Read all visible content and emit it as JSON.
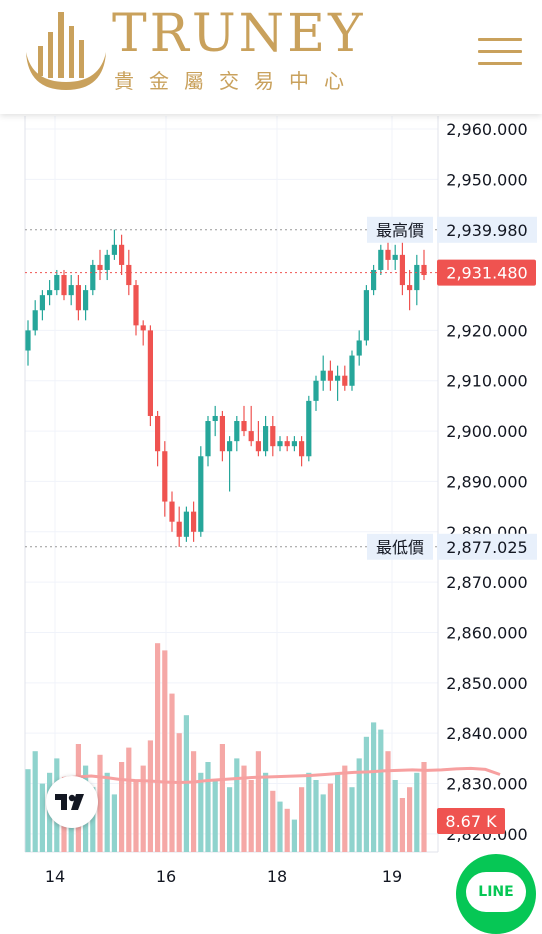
{
  "header": {
    "brand": "TRUNEY",
    "subtitle": "貴金屬交易中心",
    "menu_icon": "hamburger-menu-icon"
  },
  "chart_data": {
    "type": "candlestick",
    "x_ticks": [
      "14",
      "16",
      "18",
      "19"
    ],
    "y_ticks": [
      "2,960.000",
      "2,950.000",
      "2,920.000",
      "2,910.000",
      "2,900.000",
      "2,890.000",
      "2,880.000",
      "2,870.000",
      "2,860.000",
      "2,850.000",
      "2,840.000",
      "2,830.000",
      "2,820.000"
    ],
    "y_tick_values": [
      2960,
      2950,
      2920,
      2910,
      2900,
      2890,
      2880,
      2870,
      2860,
      2850,
      2840,
      2830,
      2820
    ],
    "y_range": [
      2817,
      2962
    ],
    "high": {
      "label": "最高價",
      "value": "2,939.980",
      "price": 2939.98
    },
    "low": {
      "label": "最低價",
      "value": "2,877.025",
      "price": 2877.025
    },
    "last": {
      "value": "2,931.480",
      "price": 2931.48
    },
    "volume": {
      "value": "8.67 K"
    },
    "colors": {
      "up": "#26a69a",
      "down": "#ef5350",
      "up_volume": "#8fd3cd",
      "down_volume": "#f5a8a6",
      "ma_line": "#f7a0a0",
      "badge_bg": "#e8f0fb",
      "last_badge": "#ef5350"
    },
    "candles": [
      {
        "o": 2916,
        "h": 2922,
        "l": 2913,
        "c": 2920
      },
      {
        "o": 2920,
        "h": 2926,
        "l": 2919,
        "c": 2924
      },
      {
        "o": 2924,
        "h": 2928,
        "l": 2922,
        "c": 2927
      },
      {
        "o": 2927,
        "h": 2930,
        "l": 2925,
        "c": 2928
      },
      {
        "o": 2928,
        "h": 2932,
        "l": 2927,
        "c": 2931
      },
      {
        "o": 2931,
        "h": 2932,
        "l": 2926,
        "c": 2927
      },
      {
        "o": 2927,
        "h": 2931,
        "l": 2925,
        "c": 2929
      },
      {
        "o": 2929,
        "h": 2931,
        "l": 2922,
        "c": 2924
      },
      {
        "o": 2924,
        "h": 2929,
        "l": 2922,
        "c": 2928
      },
      {
        "o": 2928,
        "h": 2934,
        "l": 2927,
        "c": 2933
      },
      {
        "o": 2933,
        "h": 2936,
        "l": 2930,
        "c": 2932
      },
      {
        "o": 2932,
        "h": 2936,
        "l": 2930,
        "c": 2935
      },
      {
        "o": 2935,
        "h": 2940,
        "l": 2934,
        "c": 2937
      },
      {
        "o": 2937,
        "h": 2939,
        "l": 2931,
        "c": 2933
      },
      {
        "o": 2933,
        "h": 2936,
        "l": 2927,
        "c": 2929
      },
      {
        "o": 2929,
        "h": 2930,
        "l": 2919,
        "c": 2921
      },
      {
        "o": 2921,
        "h": 2922,
        "l": 2917,
        "c": 2920
      },
      {
        "o": 2920,
        "h": 2921,
        "l": 2901,
        "c": 2903
      },
      {
        "o": 2903,
        "h": 2904,
        "l": 2893,
        "c": 2896
      },
      {
        "o": 2896,
        "h": 2898,
        "l": 2883,
        "c": 2886
      },
      {
        "o": 2886,
        "h": 2888,
        "l": 2880,
        "c": 2882
      },
      {
        "o": 2882,
        "h": 2885,
        "l": 2877,
        "c": 2879
      },
      {
        "o": 2879,
        "h": 2885,
        "l": 2878,
        "c": 2884
      },
      {
        "o": 2884,
        "h": 2886,
        "l": 2878,
        "c": 2880
      },
      {
        "o": 2880,
        "h": 2897,
        "l": 2879,
        "c": 2895
      },
      {
        "o": 2895,
        "h": 2903,
        "l": 2893,
        "c": 2902
      },
      {
        "o": 2902,
        "h": 2905,
        "l": 2899,
        "c": 2903
      },
      {
        "o": 2903,
        "h": 2904,
        "l": 2894,
        "c": 2896
      },
      {
        "o": 2896,
        "h": 2899,
        "l": 2888,
        "c": 2898
      },
      {
        "o": 2898,
        "h": 2903,
        "l": 2896,
        "c": 2902
      },
      {
        "o": 2902,
        "h": 2905,
        "l": 2899,
        "c": 2900
      },
      {
        "o": 2900,
        "h": 2905,
        "l": 2897,
        "c": 2898
      },
      {
        "o": 2898,
        "h": 2902,
        "l": 2895,
        "c": 2896
      },
      {
        "o": 2896,
        "h": 2903,
        "l": 2895,
        "c": 2901
      },
      {
        "o": 2901,
        "h": 2903,
        "l": 2895,
        "c": 2897
      },
      {
        "o": 2897,
        "h": 2899,
        "l": 2896,
        "c": 2898
      },
      {
        "o": 2898,
        "h": 2899,
        "l": 2896,
        "c": 2897
      },
      {
        "o": 2897,
        "h": 2899,
        "l": 2896,
        "c": 2898
      },
      {
        "o": 2898,
        "h": 2899,
        "l": 2893,
        "c": 2895
      },
      {
        "o": 2895,
        "h": 2907,
        "l": 2894,
        "c": 2906
      },
      {
        "o": 2906,
        "h": 2911,
        "l": 2904,
        "c": 2910
      },
      {
        "o": 2910,
        "h": 2915,
        "l": 2908,
        "c": 2912
      },
      {
        "o": 2912,
        "h": 2914,
        "l": 2908,
        "c": 2910
      },
      {
        "o": 2910,
        "h": 2913,
        "l": 2906,
        "c": 2911
      },
      {
        "o": 2911,
        "h": 2913,
        "l": 2908,
        "c": 2909
      },
      {
        "o": 2909,
        "h": 2916,
        "l": 2908,
        "c": 2915
      },
      {
        "o": 2915,
        "h": 2920,
        "l": 2913,
        "c": 2918
      },
      {
        "o": 2918,
        "h": 2929,
        "l": 2917,
        "c": 2928
      },
      {
        "o": 2928,
        "h": 2933,
        "l": 2927,
        "c": 2932
      },
      {
        "o": 2932,
        "h": 2937,
        "l": 2931,
        "c": 2936
      },
      {
        "o": 2936,
        "h": 2938,
        "l": 2932,
        "c": 2934
      },
      {
        "o": 2934,
        "h": 2937,
        "l": 2932,
        "c": 2935
      },
      {
        "o": 2935,
        "h": 2940,
        "l": 2927,
        "c": 2929
      },
      {
        "o": 2929,
        "h": 2932,
        "l": 2924,
        "c": 2928
      },
      {
        "o": 2928,
        "h": 2935,
        "l": 2925,
        "c": 2933
      },
      {
        "o": 2933,
        "h": 2936,
        "l": 2930,
        "c": 2931
      }
    ],
    "volumes": [
      23,
      28,
      19,
      22,
      26,
      17,
      21,
      30,
      24,
      18,
      27,
      22,
      16,
      25,
      29,
      20,
      24,
      31,
      58,
      56,
      44,
      33,
      38,
      28,
      22,
      25,
      20,
      30,
      18,
      26,
      24,
      20,
      28,
      22,
      17,
      14,
      12,
      9,
      18,
      22,
      20,
      16,
      19,
      22,
      24,
      18,
      26,
      32,
      36,
      34,
      28,
      20,
      15,
      18,
      22,
      25
    ],
    "ma_line": [
      2831.0,
      2831.3,
      2831.5,
      2831.2,
      2830.8,
      2830.6,
      2830.5,
      2830.3,
      2830.2,
      2830.3,
      2830.6,
      2830.8,
      2831.0,
      2831.2,
      2831.3,
      2831.4,
      2831.5,
      2831.6,
      2831.8,
      2832.0,
      2832.2,
      2832.3,
      2832.5,
      2832.6,
      2832.7,
      2832.6,
      2832.7,
      2832.9,
      2833.0,
      2832.8,
      2831.8
    ]
  },
  "tv_logo": "tradingview-logo",
  "line_button": {
    "label": "LINE",
    "icon": "line-chat-icon"
  }
}
